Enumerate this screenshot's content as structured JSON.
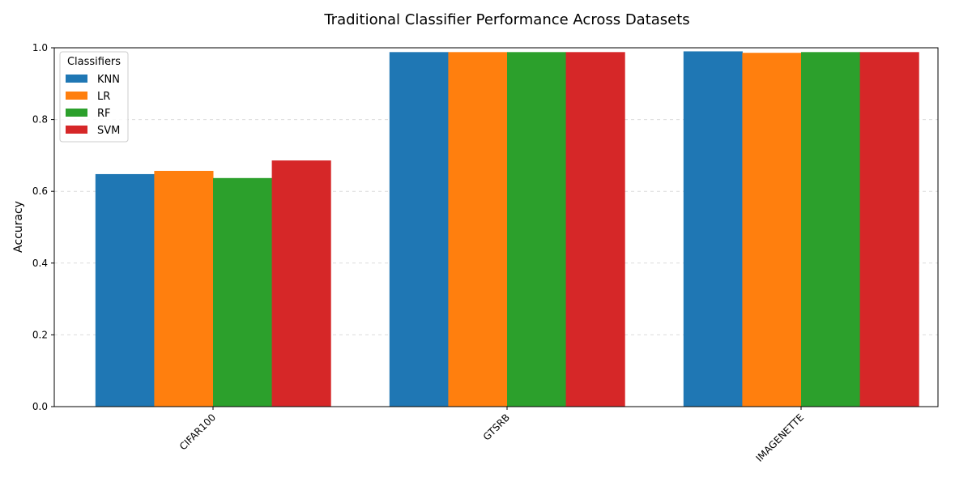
{
  "chart_data": {
    "type": "bar",
    "title": "Traditional Classifier Performance Across Datasets",
    "xlabel": "",
    "ylabel": "Accuracy",
    "ylim": [
      0,
      1.0
    ],
    "yticks": [
      "0.0",
      "0.2",
      "0.4",
      "0.6",
      "0.8",
      "1.0"
    ],
    "grid": "horizontal dashed",
    "legend_title": "Classifiers",
    "legend_position": "top-left",
    "categories": [
      "CIFAR100",
      "GTSRB",
      "IMAGENETTE"
    ],
    "series": [
      {
        "name": "KNN",
        "color": "#1f77b4",
        "values": [
          0.648,
          0.988,
          0.99
        ]
      },
      {
        "name": "LR",
        "color": "#ff7f0e",
        "values": [
          0.657,
          0.988,
          0.986
        ]
      },
      {
        "name": "RF",
        "color": "#2ca02c",
        "values": [
          0.637,
          0.988,
          0.988
        ]
      },
      {
        "name": "SVM",
        "color": "#d62728",
        "values": [
          0.686,
          0.988,
          0.988
        ]
      }
    ]
  }
}
